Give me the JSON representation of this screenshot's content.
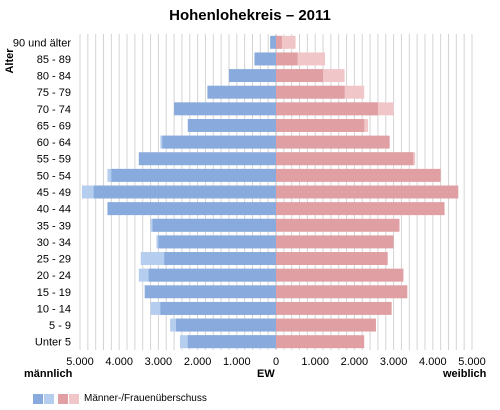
{
  "colors": {
    "male": "#88aadc",
    "male_surplus": "#b5cdee",
    "female": "#e09fa3",
    "female_surplus": "#f0c6c9",
    "grid": "#d4d4d4"
  },
  "legend": {
    "label": "Männer-/Frauenüberschuss"
  },
  "chart_data": {
    "type": "bar",
    "orientation": "horizontal-pyramid",
    "title": "Hohenlohekreis – 2011",
    "ylabel": "Alter",
    "xlabel": "EW",
    "left_label": "männlich",
    "right_label": "weiblich",
    "xlim": [
      -5000,
      5000
    ],
    "x_ticks": [
      "5.000",
      "4.000",
      "3.000",
      "2.000",
      "1.000",
      "0",
      "1.000",
      "2.000",
      "3.000",
      "4.000",
      "5.000"
    ],
    "grid": "vertical",
    "legend_position": "bottom-left",
    "categories": [
      "90 und älter",
      "85 - 89",
      "80 - 84",
      "75 - 79",
      "70 - 74",
      "65 - 69",
      "60 - 64",
      "55 - 59",
      "50 - 54",
      "45 - 49",
      "40 - 44",
      "35 - 39",
      "30 - 34",
      "25 - 29",
      "20 - 24",
      "15 - 19",
      "10 - 14",
      "5 - 9",
      "Unter 5"
    ],
    "series": [
      {
        "name": "männlich",
        "values": [
          150,
          550,
          1200,
          1750,
          2600,
          2250,
          2950,
          3500,
          4300,
          4950,
          4300,
          3200,
          3050,
          3450,
          3500,
          3350,
          3200,
          2700,
          2450
        ]
      },
      {
        "name": "weiblich",
        "values": [
          500,
          1250,
          1750,
          2250,
          3000,
          2350,
          2900,
          3550,
          4200,
          4650,
          4300,
          3150,
          3000,
          2850,
          3250,
          3350,
          2950,
          2550,
          2250
        ]
      }
    ]
  }
}
